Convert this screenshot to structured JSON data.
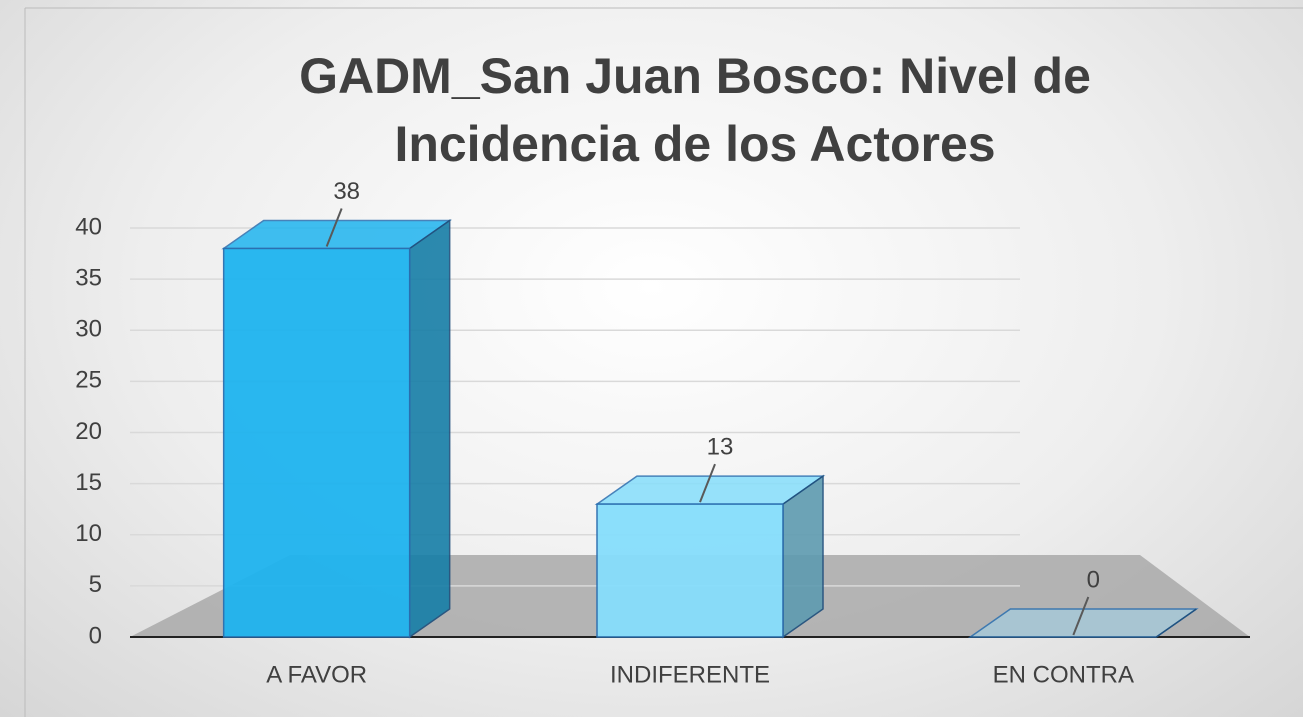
{
  "chart_data": {
    "type": "bar3d",
    "title": "GADM_San Juan Bosco: Nivel de Incidencia de los Actores",
    "categories": [
      "A FAVOR",
      "INDIFERENTE",
      "EN CONTRA"
    ],
    "values": [
      38,
      13,
      0
    ],
    "colors": [
      "#1fb4ef",
      "#86defc",
      "#a7c9d8"
    ],
    "ylim": [
      0,
      40
    ],
    "yticks": [
      0,
      5,
      10,
      15,
      20,
      25,
      30,
      35,
      40
    ],
    "grid": true
  }
}
